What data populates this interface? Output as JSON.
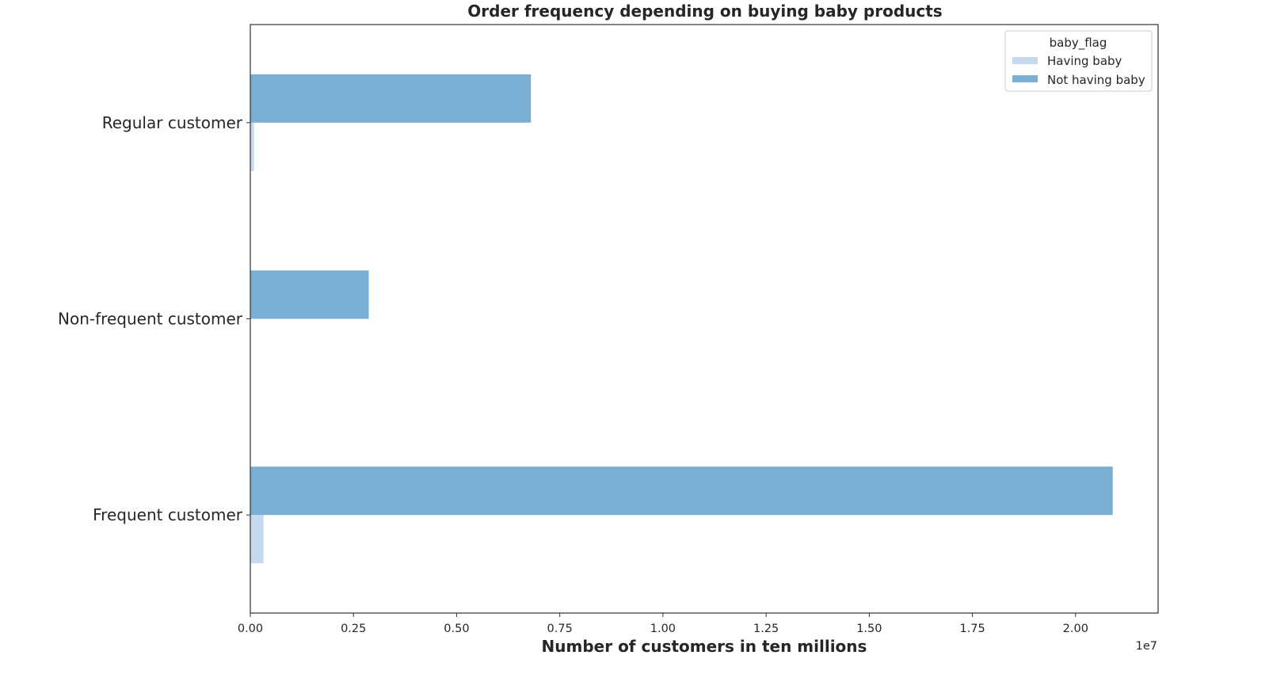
{
  "chart_data": {
    "type": "bar",
    "orientation": "horizontal",
    "title": "Order frequency depending on buying baby products",
    "xlabel": "Number of customers in ten millions",
    "ylabel": "",
    "x_offset_label": "1e7",
    "categories": [
      "Regular customer",
      "Non-frequent customer",
      "Frequent customer"
    ],
    "series": [
      {
        "name": "Having baby",
        "color": "#c6d9ee",
        "values": [
          0.009,
          0.0,
          0.032
        ]
      },
      {
        "name": "Not having baby",
        "color": "#7aaed3",
        "values": [
          0.68,
          0.287,
          2.09
        ]
      }
    ],
    "xlim": [
      0,
      2.2
    ],
    "xticks": [
      0.0,
      0.25,
      0.5,
      0.75,
      1.0,
      1.25,
      1.5,
      1.75,
      2.0
    ],
    "xtick_labels": [
      "0.00",
      "0.25",
      "0.50",
      "0.75",
      "1.00",
      "1.25",
      "1.50",
      "1.75",
      "2.00"
    ],
    "grid": false,
    "legend": {
      "title": "baby_flag",
      "placement": "top-right"
    }
  }
}
